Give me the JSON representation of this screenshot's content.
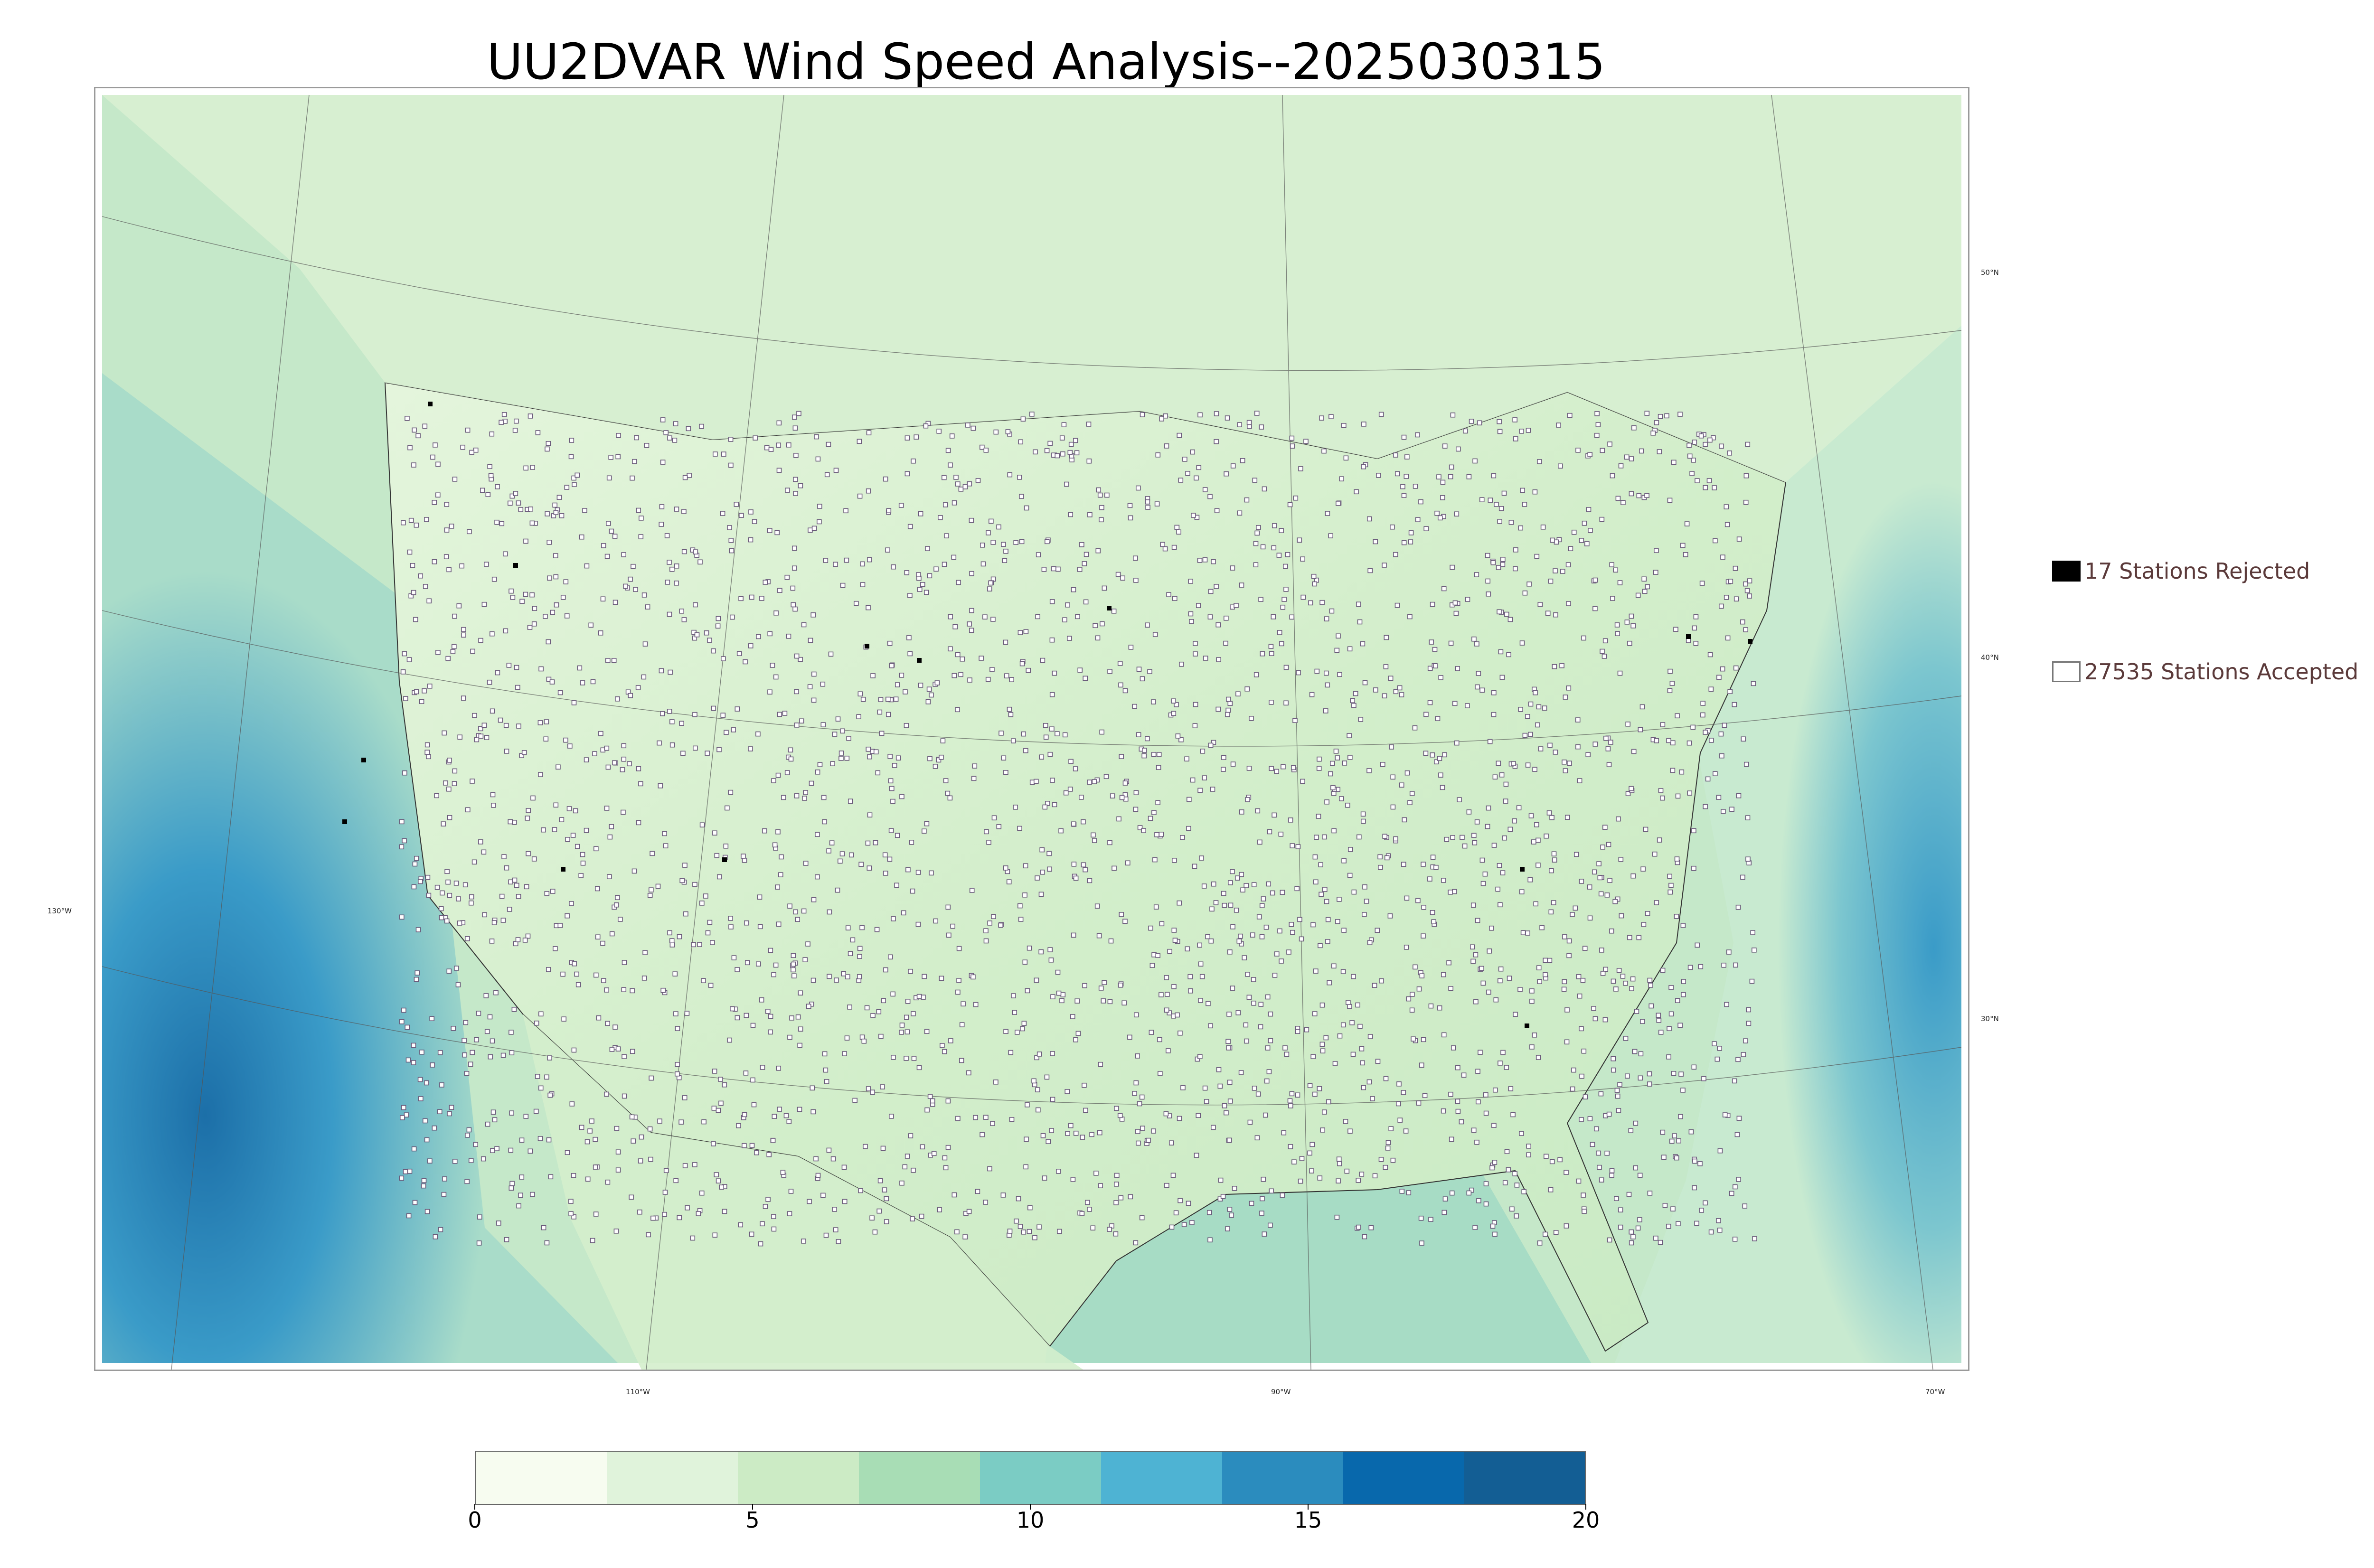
{
  "title": "UU2DVAR Wind Speed Analysis--2025030315",
  "legend": {
    "rejected_label": "17 Stations Rejected",
    "accepted_label": "27535 Stations Accepted"
  },
  "graticule": {
    "lat_labels": [
      "50°N",
      "40°N",
      "30°N"
    ],
    "lon_labels": [
      "130°W",
      "110°W",
      "90°W",
      "70°W"
    ]
  },
  "colorbar": {
    "ticks": [
      "0",
      "5",
      "10",
      "15",
      "20"
    ],
    "range": [
      0,
      20
    ],
    "colors": [
      "#f7fcf0",
      "#e0f3db",
      "#ccebc5",
      "#a8ddb5",
      "#7bccc4",
      "#4eb3d3",
      "#2b8cbe",
      "#0868ac",
      "#135e94"
    ]
  },
  "colors": {
    "land": "#d8efcf",
    "ocean_west": "#3a9bc8",
    "ocean_east": "#5fb8cf",
    "station_fill": "#ffffff",
    "station_stroke": "#6a5a7a",
    "rejected_fill": "#000000"
  }
}
